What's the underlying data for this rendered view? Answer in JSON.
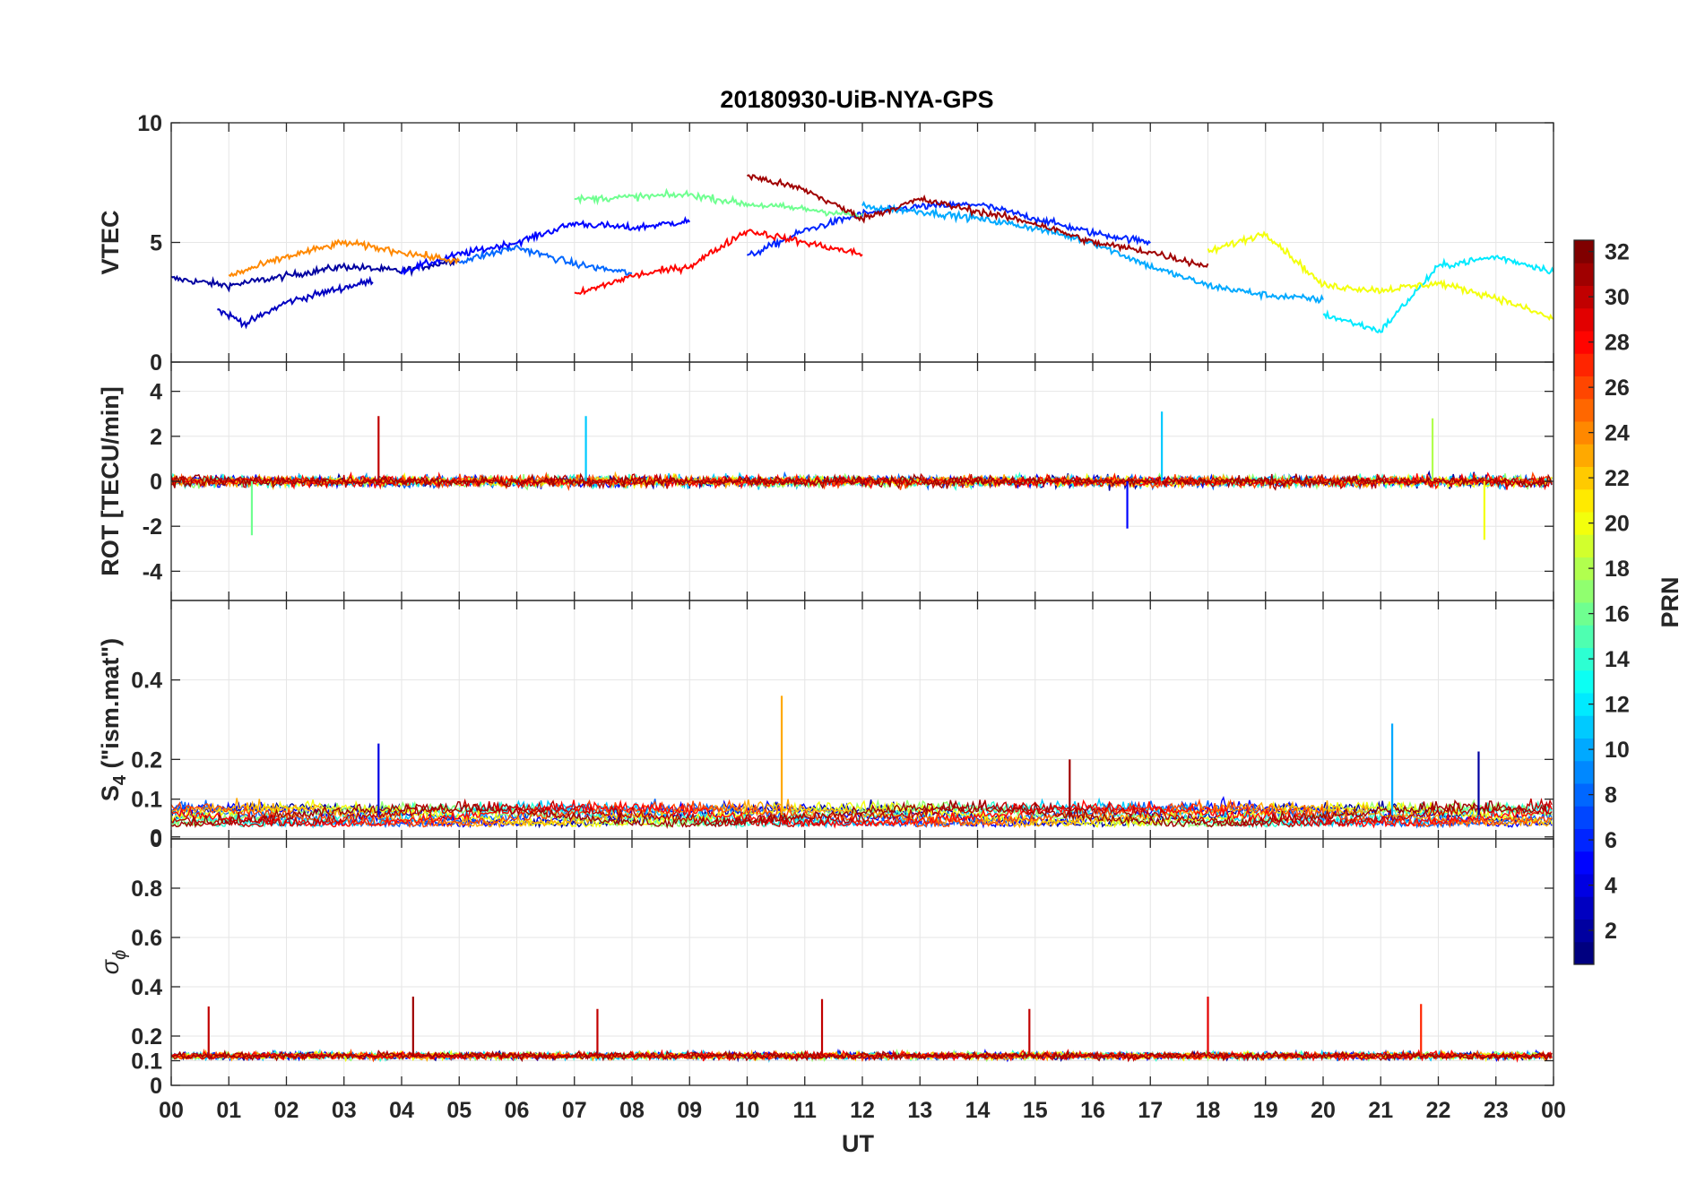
{
  "title": "20180930-UiB-NYA-GPS",
  "x_axis": {
    "label": "UT",
    "ticks": [
      "00",
      "01",
      "02",
      "03",
      "04",
      "05",
      "06",
      "07",
      "08",
      "09",
      "10",
      "11",
      "12",
      "13",
      "14",
      "15",
      "16",
      "17",
      "18",
      "19",
      "20",
      "21",
      "22",
      "23",
      "00"
    ],
    "range": [
      0,
      24
    ]
  },
  "panels": [
    {
      "id": "vtec",
      "ylabel": "VTEC",
      "ylim": [
        0,
        10
      ],
      "yticks": [
        "0",
        "5",
        "10"
      ],
      "ytick_values": [
        0,
        5,
        10
      ]
    },
    {
      "id": "rot",
      "ylabel": "ROT [TECU/min]",
      "ylim": [
        -5.3,
        5.3
      ],
      "yticks": [
        "-4",
        "-2",
        "0",
        "2",
        "4"
      ],
      "ytick_values": [
        -4,
        -2,
        0,
        2,
        4
      ]
    },
    {
      "id": "s4",
      "ylabel_main": "S",
      "ylabel_sub": "4",
      "ylabel_rest": " (\"ism.mat\")",
      "ylim": [
        0,
        0.6
      ],
      "yticks": [
        "0",
        "0",
        "0.1",
        "0.2",
        "0.4"
      ],
      "ytick_values": [
        0,
        0.005,
        0.1,
        0.2,
        0.4
      ]
    },
    {
      "id": "sigphi",
      "ylabel_main": "σ",
      "ylabel_sub": "ϕ",
      "ylim": [
        0,
        1.0
      ],
      "yticks": [
        "0",
        "0.1",
        "0.2",
        "0.4",
        "0.6",
        "0.8"
      ],
      "ytick_values": [
        0,
        0.1,
        0.2,
        0.4,
        0.6,
        0.8
      ]
    }
  ],
  "colorbar": {
    "label": "PRN",
    "range": [
      1,
      32
    ],
    "ticks": [
      "2",
      "4",
      "6",
      "8",
      "10",
      "12",
      "14",
      "16",
      "18",
      "20",
      "22",
      "24",
      "26",
      "28",
      "30",
      "32"
    ],
    "tick_values": [
      2,
      4,
      6,
      8,
      10,
      12,
      14,
      16,
      18,
      20,
      22,
      24,
      26,
      28,
      30,
      32
    ],
    "colormap": "jet"
  },
  "chart_data": [
    {
      "type": "line",
      "panel": "vtec",
      "title": "20180930-UiB-NYA-GPS",
      "ylabel": "VTEC",
      "xlabel": "",
      "ylim": [
        0,
        10
      ],
      "xlim": [
        0,
        24
      ],
      "grid": true,
      "series": [
        {
          "prn": 2,
          "x": [
            0,
            1,
            2,
            3,
            4,
            5
          ],
          "y": [
            3.5,
            3.2,
            3.6,
            4.0,
            3.8,
            4.3
          ]
        },
        {
          "prn": 3,
          "x": [
            0.8,
            1.3,
            2,
            2.8,
            3.5
          ],
          "y": [
            2.2,
            1.6,
            2.5,
            3.0,
            3.4
          ]
        },
        {
          "prn": 5,
          "x": [
            4,
            5,
            6,
            7,
            8,
            9
          ],
          "y": [
            3.8,
            4.5,
            5.0,
            5.8,
            5.6,
            5.9
          ]
        },
        {
          "prn": 6,
          "x": [
            10,
            11,
            12,
            13,
            14,
            15,
            16,
            17
          ],
          "y": [
            4.4,
            5.5,
            6.2,
            6.5,
            6.6,
            6.0,
            5.4,
            5.0
          ]
        },
        {
          "prn": 8,
          "x": [
            5,
            6,
            7,
            8
          ],
          "y": [
            4.2,
            4.8,
            4.1,
            3.7
          ]
        },
        {
          "prn": 10,
          "x": [
            12,
            13,
            14,
            15,
            16,
            17,
            18,
            19,
            20
          ],
          "y": [
            6.5,
            6.3,
            6.0,
            5.6,
            5.0,
            4.0,
            3.2,
            2.8,
            2.6
          ]
        },
        {
          "prn": 12,
          "x": [
            20,
            21,
            22,
            23,
            24
          ],
          "y": [
            2.0,
            1.3,
            4.0,
            4.4,
            3.8
          ]
        },
        {
          "prn": 16,
          "x": [
            7,
            8,
            9,
            10,
            11,
            12
          ],
          "y": [
            6.8,
            6.9,
            7.0,
            6.6,
            6.4,
            6.1
          ]
        },
        {
          "prn": 20,
          "x": [
            18,
            19,
            20,
            21,
            22,
            23,
            24
          ],
          "y": [
            4.6,
            5.4,
            3.2,
            3.0,
            3.3,
            2.7,
            1.8
          ]
        },
        {
          "prn": 24,
          "x": [
            1,
            2,
            3,
            4,
            5
          ],
          "y": [
            3.6,
            4.4,
            5.0,
            4.6,
            4.2
          ]
        },
        {
          "prn": 28,
          "x": [
            7,
            8,
            9,
            10,
            11,
            12
          ],
          "y": [
            2.8,
            3.6,
            4.0,
            5.5,
            5.0,
            4.5
          ]
        },
        {
          "prn": 31,
          "x": [
            10,
            11,
            12,
            13,
            14,
            15,
            16,
            17,
            18
          ],
          "y": [
            7.8,
            7.2,
            6.0,
            6.8,
            6.3,
            5.8,
            5.0,
            4.6,
            4.0
          ]
        }
      ]
    },
    {
      "type": "line",
      "panel": "rot",
      "ylabel": "ROT [TECU/min]",
      "ylim": [
        -5.3,
        5.3
      ],
      "xlim": [
        0,
        24
      ],
      "grid": true,
      "annotations": [
        {
          "prn": 30,
          "x": 3.6,
          "y": 2.9
        },
        {
          "prn": 11,
          "x": 7.2,
          "y": 2.9
        },
        {
          "prn": 11,
          "x": 17.2,
          "y": 3.1
        },
        {
          "prn": 18,
          "x": 21.9,
          "y": 2.8
        },
        {
          "prn": 20,
          "x": 22.8,
          "y": -2.6
        },
        {
          "prn": 5,
          "x": 16.6,
          "y": -2.1
        },
        {
          "prn": 16,
          "x": 1.4,
          "y": -2.4
        }
      ]
    },
    {
      "type": "line",
      "panel": "s4",
      "ylabel": "S4 (\"ism.mat\")",
      "ylim": [
        0,
        0.6
      ],
      "xlim": [
        0,
        24
      ],
      "grid": true,
      "annotations": [
        {
          "prn": 23,
          "x": 10.6,
          "y": 0.36
        },
        {
          "prn": 10,
          "x": 21.2,
          "y": 0.29
        },
        {
          "prn": 4,
          "x": 3.6,
          "y": 0.24
        },
        {
          "prn": 31,
          "x": 15.6,
          "y": 0.2
        },
        {
          "prn": 2,
          "x": 22.7,
          "y": 0.22
        }
      ]
    },
    {
      "type": "line",
      "panel": "sigphi",
      "ylabel": "σϕ",
      "ylim": [
        0,
        1.0
      ],
      "xlim": [
        0,
        24
      ],
      "grid": true,
      "annotations": [
        {
          "prn": 30,
          "x": 0.65,
          "y": 0.32
        },
        {
          "prn": 31,
          "x": 4.2,
          "y": 0.36
        },
        {
          "prn": 30,
          "x": 7.4,
          "y": 0.31
        },
        {
          "prn": 30,
          "x": 11.3,
          "y": 0.35
        },
        {
          "prn": 30,
          "x": 14.9,
          "y": 0.31
        },
        {
          "prn": 29,
          "x": 18.0,
          "y": 0.36
        },
        {
          "prn": 27,
          "x": 21.7,
          "y": 0.33
        }
      ]
    }
  ]
}
